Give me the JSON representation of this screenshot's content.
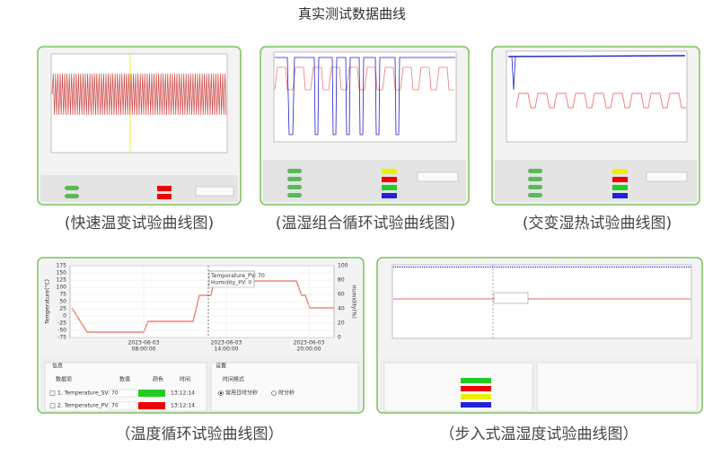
{
  "title": "真实测试数据曲线",
  "captions": [
    "(快速温变试验曲线图)",
    "(温湿组合循环试验曲线图)",
    "(交变湿热试验曲线图)",
    "（温度循环试验曲线图）",
    "（步入式温湿度试验曲线图）"
  ],
  "cycle_chart": {
    "left_axis_label": "Temperature(°C)",
    "right_axis_label": "Humidity(%)",
    "left_ticks": [
      "175",
      "150",
      "125",
      "100",
      "75",
      "50",
      "25",
      "0",
      "-25",
      "-50",
      "-75"
    ],
    "right_ticks": [
      "100",
      "80",
      "60",
      "40",
      "20",
      "0"
    ],
    "x_ticks": [
      [
        "2023-06-03",
        "08:00:00"
      ],
      [
        "2023-06-03",
        "14:00:00"
      ],
      [
        "2023-06-03",
        "20:00:00"
      ]
    ],
    "tooltip": [
      "Temperature_PV: 70",
      "Humidity_PV: 0"
    ],
    "info": {
      "title": "信息",
      "headers": [
        "数据项",
        "数值",
        "颜色",
        "时间"
      ],
      "rows": [
        [
          "1. Temperature_SV",
          "70",
          "13:12:14"
        ],
        [
          "2. Temperature_PV",
          "70",
          "13:12:14"
        ]
      ]
    },
    "settings": {
      "title": "设置",
      "label": "时间格式",
      "options": [
        "常用日时分秒",
        "时分秒"
      ]
    }
  }
}
